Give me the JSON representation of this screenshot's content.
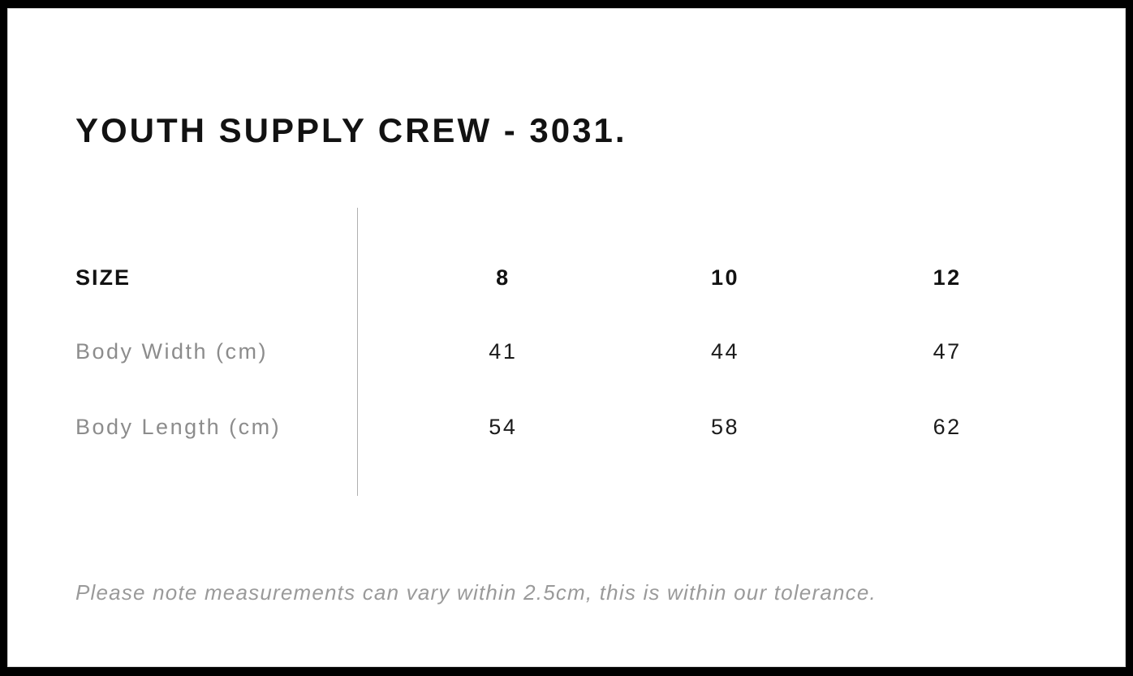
{
  "panel": {
    "title": "YOUTH SUPPLY CREW - 3031."
  },
  "size_table": {
    "header": {
      "label": "SIZE",
      "sizes": [
        "8",
        "10",
        "12"
      ]
    },
    "rows": [
      {
        "label": "Body Width (cm)",
        "values": [
          "41",
          "44",
          "47"
        ]
      },
      {
        "label": "Body Length (cm)",
        "values": [
          "54",
          "58",
          "62"
        ]
      }
    ]
  },
  "footer": {
    "note": "Please note measurements can vary within 2.5cm, this is within our tolerance."
  },
  "colors": {
    "frame": "#000000",
    "background": "#ffffff",
    "text_primary": "#121212",
    "text_muted": "#8c8c8c",
    "note_text": "#9a9a9a",
    "divider": "#b0b0b0"
  }
}
